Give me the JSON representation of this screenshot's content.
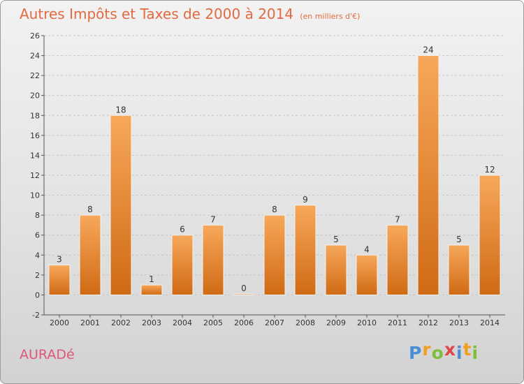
{
  "title": "Autres Impôts et Taxes de 2000 à 2014",
  "unit": "(en milliers d'€)",
  "location": "AURADé",
  "logo": {
    "letters": [
      "P",
      "r",
      "o",
      "x",
      "i",
      "t",
      "i"
    ],
    "colors": [
      "#4a8fd6",
      "#f0a020",
      "#7bbf3a",
      "#e04848",
      "#4a8fd6",
      "#f0a020",
      "#7bbf3a"
    ]
  },
  "colors": {
    "bar": "#f08c2e",
    "bar_light": "#f7a85a",
    "bar_dark": "#d06a14",
    "title": "#e36a40",
    "location": "#e0567a"
  },
  "chart_data": {
    "type": "bar",
    "title": "Autres Impôts et Taxes de 2000 à 2014",
    "categories": [
      "2000",
      "2001",
      "2002",
      "2003",
      "2004",
      "2005",
      "2006",
      "2007",
      "2008",
      "2009",
      "2010",
      "2011",
      "2012",
      "2013",
      "2014"
    ],
    "values": [
      3,
      8,
      18,
      1,
      6,
      7,
      0,
      8,
      9,
      5,
      4,
      7,
      24,
      5,
      12
    ],
    "ylim": [
      -2,
      26
    ],
    "yticks": [
      -2,
      0,
      2,
      4,
      6,
      8,
      10,
      12,
      14,
      16,
      18,
      20,
      22,
      24,
      26
    ],
    "grid": true,
    "xlabel": "",
    "ylabel": ""
  }
}
